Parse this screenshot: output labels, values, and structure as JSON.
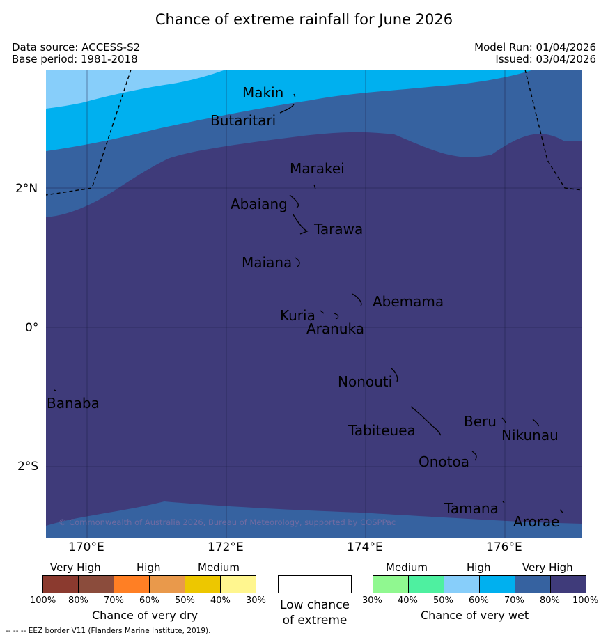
{
  "title": "Chance of extreme rainfall for June 2026",
  "header": {
    "data_source": "Data source: ACCESS-S2",
    "base_period": "Base period: 1981-2018",
    "model_run": "Model Run: 01/04/2026",
    "issued": "Issued: 03/04/2026"
  },
  "map": {
    "lat_labels": [
      "2°N",
      "0°",
      "2°S"
    ],
    "lon_labels": [
      "170°E",
      "172°E",
      "174°E",
      "176°E"
    ],
    "copyright": "© Commonwealth of Australia 2026, Bureau of Meteorology, supported by COSPPac",
    "places": [
      "Makin",
      "Butaritari",
      "Marakei",
      "Abaiang",
      "Tarawa",
      "Maiana",
      "Abemama",
      "Kuria",
      "Aranuka",
      "Nonouti",
      "Banaba",
      "Tabiteuea",
      "Beru",
      "Nikunau",
      "Onotoa",
      "Tamana",
      "Arorae"
    ],
    "zone_colors": {
      "70-80": "#87cefa",
      "80-90": "#00b0ef",
      "90-100": "#3662a0",
      "100": "#3f3b7a"
    }
  },
  "legend": {
    "dry": {
      "categories": [
        "Very High",
        "High",
        "Medium"
      ],
      "ticks": [
        "100%",
        "80%",
        "70%",
        "60%",
        "50%",
        "40%",
        "30%"
      ],
      "colors": [
        "#8b3a2f",
        "#8b4c3c",
        "#ff7f24",
        "#e9994b",
        "#edc700",
        "#fff68f"
      ],
      "caption": "Chance of very dry"
    },
    "neutral": {
      "caption_line1": "Low chance",
      "caption_line2": "of extreme"
    },
    "wet": {
      "categories": [
        "Medium",
        "High",
        "Very High"
      ],
      "ticks": [
        "30%",
        "40%",
        "50%",
        "60%",
        "70%",
        "80%",
        "100%"
      ],
      "colors": [
        "#90f890",
        "#4ef0a0",
        "#87cefa",
        "#00b0ef",
        "#3662a0",
        "#3f3b7a"
      ],
      "caption": "Chance of very wet"
    }
  },
  "footer": "--  --  -- EEZ border V11 (Flanders Marine Institute, 2019)."
}
